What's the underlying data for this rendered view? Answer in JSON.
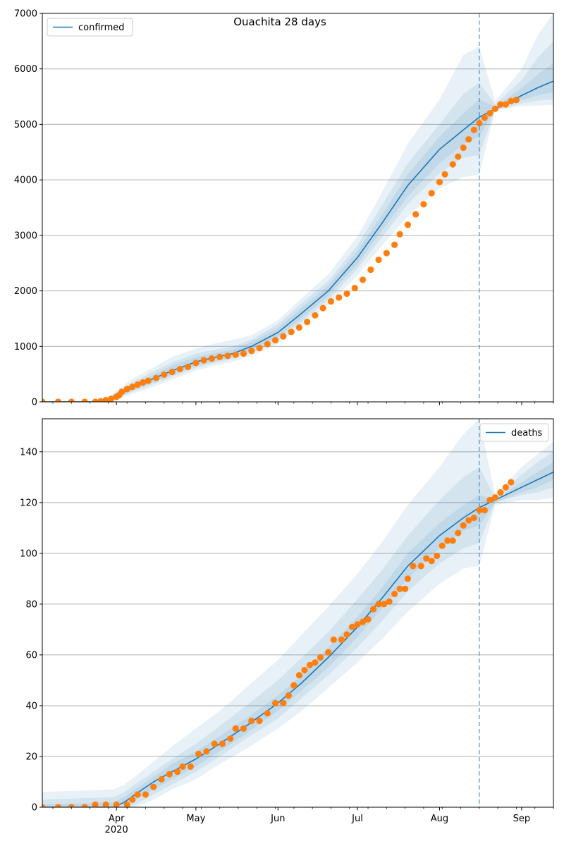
{
  "figure": {
    "title": "Ouachita 28 days"
  },
  "colors": {
    "line": "#1f77b4",
    "band": "#1f77b4",
    "obs": "#ff7f0e",
    "grid": "#b0b0b0"
  },
  "xaxis": {
    "ticks": [
      {
        "date": "2020-04-01",
        "label": "Apr"
      },
      {
        "date": "2020-05-01",
        "label": "May"
      },
      {
        "date": "2020-06-01",
        "label": "Jun"
      },
      {
        "date": "2020-07-01",
        "label": "Jul"
      },
      {
        "date": "2020-08-01",
        "label": "Aug"
      },
      {
        "date": "2020-09-01",
        "label": "Sep"
      }
    ],
    "year_label": "2020"
  },
  "chart_data": [
    {
      "type": "line",
      "name": "confirmed",
      "legend": "confirmed",
      "legend_loc": "upper left",
      "xlim": [
        "2020-03-04",
        "2020-09-13"
      ],
      "ylim": [
        0,
        7000
      ],
      "yticks": [
        0,
        1000,
        2000,
        3000,
        4000,
        5000,
        6000,
        7000
      ],
      "forecast_start": "2020-08-16",
      "model": {
        "x": [
          "2020-03-04",
          "2020-03-25",
          "2020-03-30",
          "2020-04-01",
          "2020-04-08",
          "2020-04-15",
          "2020-04-22",
          "2020-05-01",
          "2020-05-08",
          "2020-05-15",
          "2020-05-22",
          "2020-06-01",
          "2020-06-10",
          "2020-06-20",
          "2020-07-01",
          "2020-07-10",
          "2020-07-20",
          "2020-08-01",
          "2020-08-10",
          "2020-08-16",
          "2020-08-22",
          "2020-09-01",
          "2020-09-07",
          "2020-09-13"
        ],
        "y": [
          0,
          0,
          40,
          100,
          280,
          420,
          560,
          720,
          800,
          870,
          1000,
          1250,
          1600,
          2000,
          2600,
          3200,
          3900,
          4550,
          4900,
          5130,
          5280,
          5520,
          5660,
          5780
        ],
        "bands": [
          {
            "lo": [
              0,
              0,
              15,
              40,
              160,
              270,
              400,
              560,
              650,
              720,
              830,
              1050,
              1380,
              1750,
              2280,
              2800,
              3350,
              3850,
              4050,
              4100,
              5250,
              5330,
              5340,
              5350
            ],
            "hi": [
              0,
              0,
              120,
              210,
              440,
              620,
              810,
              960,
              1050,
              1120,
              1200,
              1470,
              1870,
              2300,
              2980,
              3750,
              4650,
              5450,
              6250,
              6400,
              5420,
              6000,
              6600,
              7000
            ]
          },
          {
            "lo": [
              0,
              0,
              22,
              60,
              200,
              320,
              450,
              610,
              700,
              770,
              880,
              1110,
              1450,
              1840,
              2400,
              2950,
              3560,
              4120,
              4400,
              4450,
              5260,
              5380,
              5430,
              5450
            ],
            "hi": [
              0,
              0,
              95,
              170,
              380,
              550,
              710,
              870,
              940,
              1000,
              1120,
              1400,
              1780,
              2180,
              2820,
              3520,
              4300,
              5000,
              5550,
              5750,
              5360,
              5800,
              6200,
              6500
            ]
          },
          {
            "lo": [
              0,
              0,
              30,
              75,
              230,
              360,
              490,
              650,
              730,
              810,
              930,
              1170,
              1510,
              1910,
              2480,
              3070,
              3700,
              4300,
              4650,
              4780,
              5270,
              5440,
              5520,
              5580
            ],
            "hi": [
              0,
              0,
              70,
              140,
              340,
              490,
              650,
              810,
              880,
              940,
              1080,
              1330,
              1700,
              2100,
              2720,
              3350,
              4100,
              4780,
              5200,
              5450,
              5320,
              5650,
              5900,
              6100
            ]
          }
        ]
      },
      "observed": {
        "points": [
          [
            "2020-03-04",
            0
          ],
          [
            "2020-03-10",
            0
          ],
          [
            "2020-03-15",
            0
          ],
          [
            "2020-03-20",
            0
          ],
          [
            "2020-03-24",
            0
          ],
          [
            "2020-03-26",
            10
          ],
          [
            "2020-03-28",
            30
          ],
          [
            "2020-03-30",
            55
          ],
          [
            "2020-04-01",
            90
          ],
          [
            "2020-04-02",
            120
          ],
          [
            "2020-04-03",
            180
          ],
          [
            "2020-04-05",
            230
          ],
          [
            "2020-04-07",
            270
          ],
          [
            "2020-04-09",
            310
          ],
          [
            "2020-04-11",
            350
          ],
          [
            "2020-04-13",
            380
          ],
          [
            "2020-04-16",
            430
          ],
          [
            "2020-04-19",
            490
          ],
          [
            "2020-04-22",
            540
          ],
          [
            "2020-04-25",
            590
          ],
          [
            "2020-04-28",
            630
          ],
          [
            "2020-05-01",
            700
          ],
          [
            "2020-05-04",
            750
          ],
          [
            "2020-05-07",
            780
          ],
          [
            "2020-05-10",
            810
          ],
          [
            "2020-05-13",
            830
          ],
          [
            "2020-05-16",
            850
          ],
          [
            "2020-05-19",
            870
          ],
          [
            "2020-05-22",
            920
          ],
          [
            "2020-05-25",
            970
          ],
          [
            "2020-05-28",
            1040
          ],
          [
            "2020-05-31",
            1110
          ],
          [
            "2020-06-03",
            1180
          ],
          [
            "2020-06-06",
            1260
          ],
          [
            "2020-06-09",
            1340
          ],
          [
            "2020-06-12",
            1440
          ],
          [
            "2020-06-15",
            1560
          ],
          [
            "2020-06-18",
            1690
          ],
          [
            "2020-06-21",
            1810
          ],
          [
            "2020-06-24",
            1880
          ],
          [
            "2020-06-27",
            1950
          ],
          [
            "2020-06-30",
            2050
          ],
          [
            "2020-07-03",
            2200
          ],
          [
            "2020-07-06",
            2380
          ],
          [
            "2020-07-09",
            2560
          ],
          [
            "2020-07-12",
            2680
          ],
          [
            "2020-07-15",
            2830
          ],
          [
            "2020-07-17",
            3020
          ],
          [
            "2020-07-20",
            3190
          ],
          [
            "2020-07-23",
            3380
          ],
          [
            "2020-07-26",
            3560
          ],
          [
            "2020-07-29",
            3760
          ],
          [
            "2020-08-01",
            3960
          ],
          [
            "2020-08-03",
            4100
          ],
          [
            "2020-08-06",
            4280
          ],
          [
            "2020-08-08",
            4420
          ],
          [
            "2020-08-10",
            4580
          ],
          [
            "2020-08-12",
            4730
          ],
          [
            "2020-08-14",
            4900
          ],
          [
            "2020-08-16",
            5020
          ],
          [
            "2020-08-18",
            5120
          ],
          [
            "2020-08-20",
            5200
          ],
          [
            "2020-08-22",
            5280
          ],
          [
            "2020-08-24",
            5360
          ],
          [
            "2020-08-26",
            5360
          ],
          [
            "2020-08-28",
            5420
          ],
          [
            "2020-08-30",
            5440
          ]
        ]
      }
    },
    {
      "type": "line",
      "name": "deaths",
      "legend": "deaths",
      "legend_loc": "upper right",
      "xlim": [
        "2020-03-04",
        "2020-09-13"
      ],
      "ylim": [
        0,
        153
      ],
      "yticks": [
        0,
        20,
        40,
        60,
        80,
        100,
        120,
        140
      ],
      "forecast_start": "2020-08-16",
      "model": {
        "x": [
          "2020-03-04",
          "2020-03-31",
          "2020-04-04",
          "2020-04-08",
          "2020-04-15",
          "2020-04-22",
          "2020-05-01",
          "2020-05-10",
          "2020-05-20",
          "2020-06-01",
          "2020-06-10",
          "2020-06-20",
          "2020-07-01",
          "2020-07-10",
          "2020-07-20",
          "2020-08-01",
          "2020-08-10",
          "2020-08-16",
          "2020-08-22",
          "2020-09-01",
          "2020-09-07",
          "2020-09-13"
        ],
        "y": [
          0,
          0,
          2,
          5,
          10,
          14,
          19,
          25,
          32,
          41,
          49,
          59,
          71,
          82,
          95,
          107,
          114,
          118,
          121,
          126,
          129,
          132
        ],
        "bands": [
          {
            "lo": [
              0,
              0,
              0,
              0,
              3,
              7,
              11,
              17,
              23,
              31,
              38,
              47,
              57,
              66,
              77,
              88,
              94,
              95,
              119,
              121,
              121,
              122
            ],
            "hi": [
              6,
              7,
              9,
              12,
              18,
              24,
              31,
              38,
              47,
              58,
              68,
              79,
              92,
              104,
              119,
              134,
              147,
              153,
              123,
              134,
              139,
              144
            ]
          },
          {
            "lo": [
              0,
              0,
              0,
              1,
              5,
              9,
              14,
              20,
              27,
              35,
              43,
              52,
              63,
              73,
              85,
              96,
              102,
              104,
              120,
              123,
              124,
              126
            ],
            "hi": [
              3,
              4,
              6,
              9,
              14,
              19,
              25,
              32,
              40,
              50,
              59,
              69,
              82,
              93,
              107,
              121,
              130,
              134,
              122,
              131,
              136,
              140
            ]
          },
          {
            "lo": [
              0,
              0,
              1,
              3,
              7,
              11,
              16,
              22,
              29,
              38,
              46,
              55,
              67,
              78,
              90,
              102,
              109,
              111,
              120,
              124,
              126,
              129
            ],
            "hi": [
              1,
              2,
              4,
              7,
              12,
              17,
              22,
              28,
              35,
              44,
              52,
              63,
              75,
              86,
              100,
              112,
              119,
              123,
              121,
              128,
              132,
              136
            ]
          }
        ]
      },
      "observed": {
        "points": [
          [
            "2020-03-04",
            0
          ],
          [
            "2020-03-10",
            0
          ],
          [
            "2020-03-15",
            0
          ],
          [
            "2020-03-20",
            0
          ],
          [
            "2020-03-24",
            1
          ],
          [
            "2020-03-28",
            1
          ],
          [
            "2020-04-01",
            1
          ],
          [
            "2020-04-05",
            1
          ],
          [
            "2020-04-07",
            3
          ],
          [
            "2020-04-09",
            5
          ],
          [
            "2020-04-12",
            5
          ],
          [
            "2020-04-15",
            8
          ],
          [
            "2020-04-18",
            11
          ],
          [
            "2020-04-21",
            13
          ],
          [
            "2020-04-24",
            14
          ],
          [
            "2020-04-26",
            16
          ],
          [
            "2020-04-29",
            16
          ],
          [
            "2020-05-02",
            21
          ],
          [
            "2020-05-05",
            22
          ],
          [
            "2020-05-08",
            25
          ],
          [
            "2020-05-11",
            25
          ],
          [
            "2020-05-14",
            27
          ],
          [
            "2020-05-16",
            31
          ],
          [
            "2020-05-19",
            31
          ],
          [
            "2020-05-22",
            34
          ],
          [
            "2020-05-25",
            34
          ],
          [
            "2020-05-28",
            37
          ],
          [
            "2020-05-31",
            41
          ],
          [
            "2020-06-03",
            41
          ],
          [
            "2020-06-05",
            44
          ],
          [
            "2020-06-07",
            48
          ],
          [
            "2020-06-09",
            52
          ],
          [
            "2020-06-11",
            54
          ],
          [
            "2020-06-13",
            56
          ],
          [
            "2020-06-15",
            57
          ],
          [
            "2020-06-17",
            59
          ],
          [
            "2020-06-20",
            61
          ],
          [
            "2020-06-22",
            66
          ],
          [
            "2020-06-25",
            66
          ],
          [
            "2020-06-27",
            68
          ],
          [
            "2020-06-29",
            71
          ],
          [
            "2020-07-01",
            72
          ],
          [
            "2020-07-03",
            73
          ],
          [
            "2020-07-05",
            74
          ],
          [
            "2020-07-07",
            78
          ],
          [
            "2020-07-09",
            80
          ],
          [
            "2020-07-11",
            80
          ],
          [
            "2020-07-13",
            81
          ],
          [
            "2020-07-15",
            84
          ],
          [
            "2020-07-17",
            86
          ],
          [
            "2020-07-19",
            86
          ],
          [
            "2020-07-20",
            90
          ],
          [
            "2020-07-22",
            95
          ],
          [
            "2020-07-25",
            95
          ],
          [
            "2020-07-27",
            98
          ],
          [
            "2020-07-29",
            97
          ],
          [
            "2020-07-31",
            99
          ],
          [
            "2020-08-02",
            103
          ],
          [
            "2020-08-04",
            105
          ],
          [
            "2020-08-06",
            105
          ],
          [
            "2020-08-08",
            108
          ],
          [
            "2020-08-10",
            111
          ],
          [
            "2020-08-12",
            113
          ],
          [
            "2020-08-14",
            114
          ],
          [
            "2020-08-16",
            117
          ],
          [
            "2020-08-18",
            117
          ],
          [
            "2020-08-20",
            121
          ],
          [
            "2020-08-22",
            122
          ],
          [
            "2020-08-24",
            124
          ],
          [
            "2020-08-26",
            126
          ],
          [
            "2020-08-28",
            128
          ]
        ]
      }
    }
  ]
}
